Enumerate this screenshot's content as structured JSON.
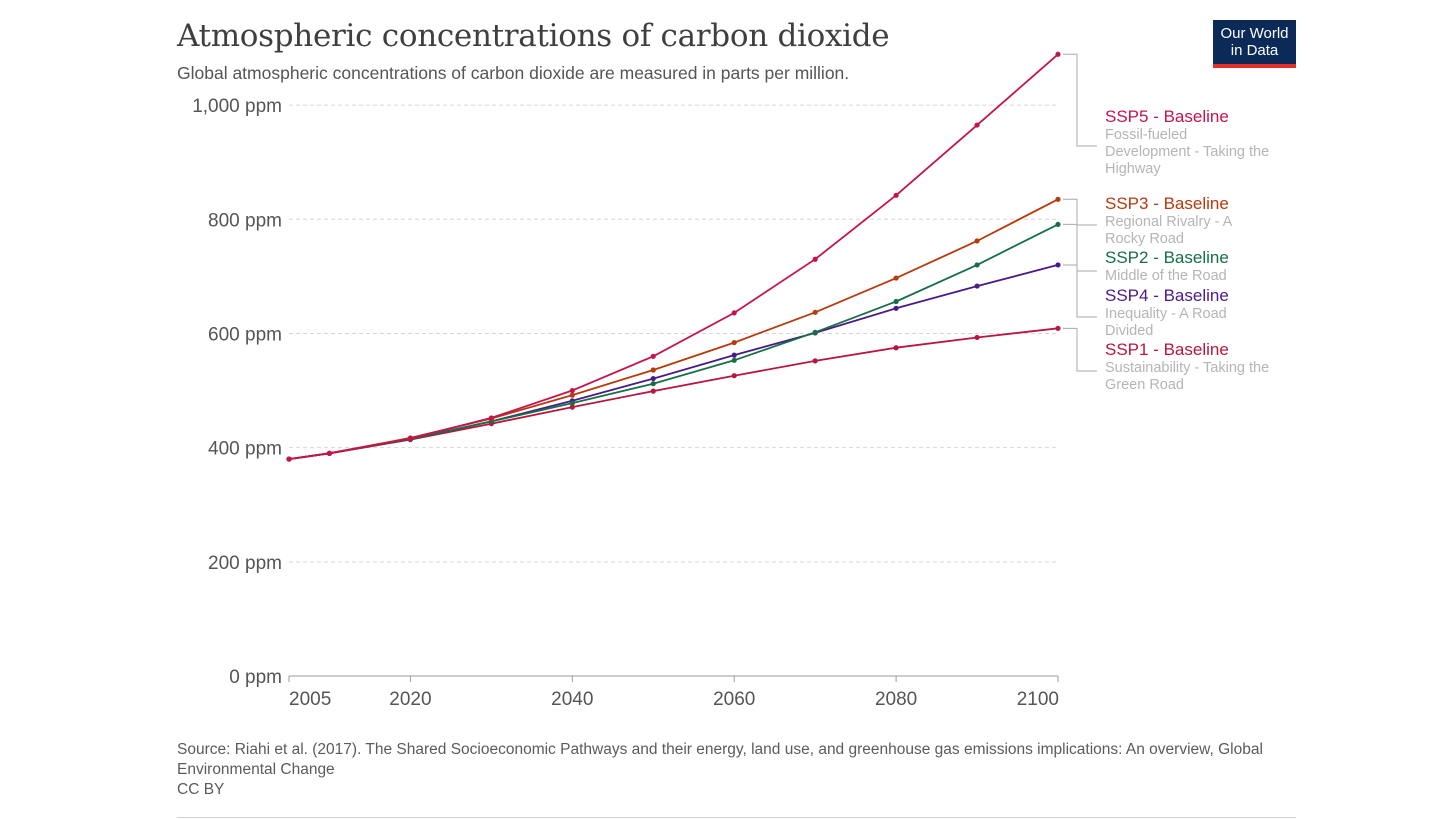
{
  "header": {
    "title": "Atmospheric concentrations of carbon dioxide",
    "subtitle": "Global atmospheric concentrations of carbon dioxide are measured in parts per million."
  },
  "logo": {
    "line1": "Our World",
    "line2": "in Data",
    "bg": "#0b2a57",
    "accent": "#e2312c"
  },
  "footer": {
    "source": "Source: Riahi et al. (2017). The Shared Socioeconomic Pathways and their energy, land use, and greenhouse gas emissions implications: An overview, Global Environmental Change",
    "license": "CC BY"
  },
  "chart_data": {
    "type": "line",
    "title": "Atmospheric concentrations of carbon dioxide",
    "xlabel": "",
    "ylabel": "",
    "xlim": [
      2005,
      2100
    ],
    "ylim": [
      0,
      1100
    ],
    "grid": true,
    "x_ticks": [
      2005,
      2020,
      2040,
      2060,
      2080,
      2100
    ],
    "y_ticks": [
      {
        "value": 0,
        "label": "0 ppm"
      },
      {
        "value": 200,
        "label": "200 ppm"
      },
      {
        "value": 400,
        "label": "400 ppm"
      },
      {
        "value": 600,
        "label": "600 ppm"
      },
      {
        "value": 800,
        "label": "800 ppm"
      },
      {
        "value": 1000,
        "label": "1,000 ppm"
      }
    ],
    "legend_placement": "right",
    "x": [
      2005,
      2010,
      2020,
      2030,
      2040,
      2050,
      2060,
      2070,
      2080,
      2090,
      2100
    ],
    "series": [
      {
        "name": "SSP5 - Baseline",
        "description": "Fossil-fueled Development - Taking the Highway",
        "color": "#c4144f",
        "values": [
          380,
          390,
          416,
          452,
          500,
          560,
          636,
          730,
          842,
          965,
          1089
        ]
      },
      {
        "name": "SSP3 - Baseline",
        "description": "Regional Rivalry - A Rocky Road",
        "color": "#b83a0b",
        "values": [
          380,
          390,
          417,
          451,
          492,
          536,
          584,
          637,
          697,
          762,
          835
        ]
      },
      {
        "name": "SSP2 - Baseline",
        "description": "Middle of the Road",
        "color": "#166f47",
        "values": [
          380,
          390,
          415,
          446,
          478,
          512,
          553,
          602,
          656,
          720,
          791
        ]
      },
      {
        "name": "SSP4 - Baseline",
        "description": "Inequality - A Road Divided",
        "color": "#4b1a8a",
        "values": [
          380,
          390,
          415,
          446,
          482,
          521,
          562,
          601,
          644,
          683,
          720
        ]
      },
      {
        "name": "SSP1 - Baseline",
        "description": "Sustainability - Taking the Green Road",
        "color": "#b8163f",
        "values": [
          380,
          390,
          414,
          442,
          471,
          499,
          526,
          552,
          575,
          593,
          609
        ]
      }
    ]
  }
}
